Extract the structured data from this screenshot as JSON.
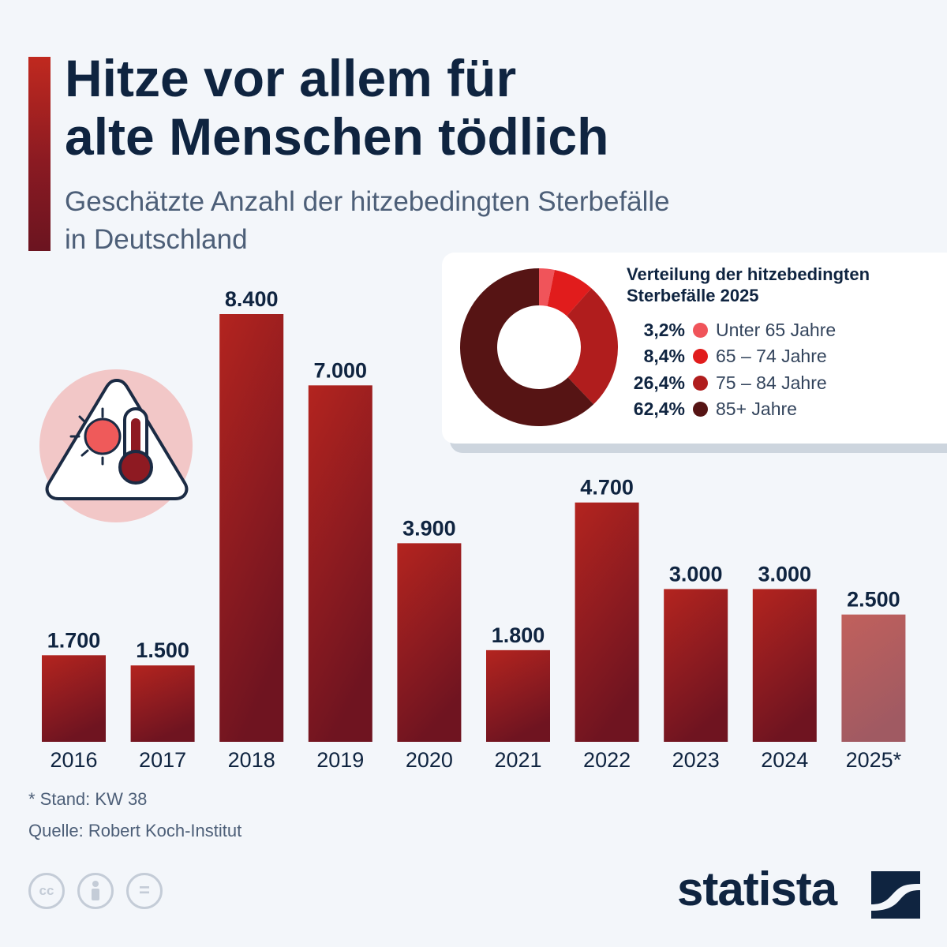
{
  "header": {
    "title": "Hitze vor allem für\nalte Menschen tödlich",
    "subtitle": "Geschätzte Anzahl der hitzebedingten Sterbefälle\nin Deutschland"
  },
  "chart_data": [
    {
      "type": "bar",
      "categories": [
        "2016",
        "2017",
        "2018",
        "2019",
        "2020",
        "2021",
        "2022",
        "2023",
        "2024",
        "2025*"
      ],
      "values": [
        1700,
        1500,
        8400,
        7000,
        3900,
        1800,
        4700,
        3000,
        3000,
        2500
      ],
      "data_labels": [
        "1.700",
        "1.500",
        "8.400",
        "7.000",
        "3.900",
        "1.800",
        "4.700",
        "3.000",
        "3.000",
        "2.500"
      ],
      "ylim": [
        0,
        8400
      ],
      "grid": false,
      "colors": {
        "bar": "#a8211f",
        "bar_dark": "#6f1420",
        "bar_estimate": "#b85a5c"
      }
    },
    {
      "type": "pie",
      "title": "Verteilung der hitzebedingten\nSterbefälle 2025",
      "legend_position": "right",
      "slices": [
        {
          "label": "Unter 65 Jahre",
          "value": 3.2,
          "display": "3,2%",
          "color": "#f0545a"
        },
        {
          "label": "65 – 74 Jahre",
          "value": 8.4,
          "display": "8,4%",
          "color": "#e11c1c"
        },
        {
          "label": "75 – 84 Jahre",
          "value": 26.4,
          "display": "26,4%",
          "color": "#b01d1d"
        },
        {
          "label": "85+ Jahre",
          "value": 62.4,
          "display": "62,4%",
          "color": "#561414"
        }
      ]
    }
  ],
  "illustration": {
    "icon": "heat-warning-icon",
    "colors": {
      "circle": "#f2c7c7",
      "sun": "#ef5a5a",
      "thermo": "#8e1a22",
      "outline": "#1b2b44"
    }
  },
  "footer": {
    "note": "* Stand: KW 38",
    "source": "Quelle: Robert Koch-Institut",
    "brand": "statista",
    "license_icons": [
      "cc-icon",
      "by-icon",
      "nd-icon"
    ],
    "license_glyphs": [
      "cc",
      "",
      "="
    ]
  }
}
